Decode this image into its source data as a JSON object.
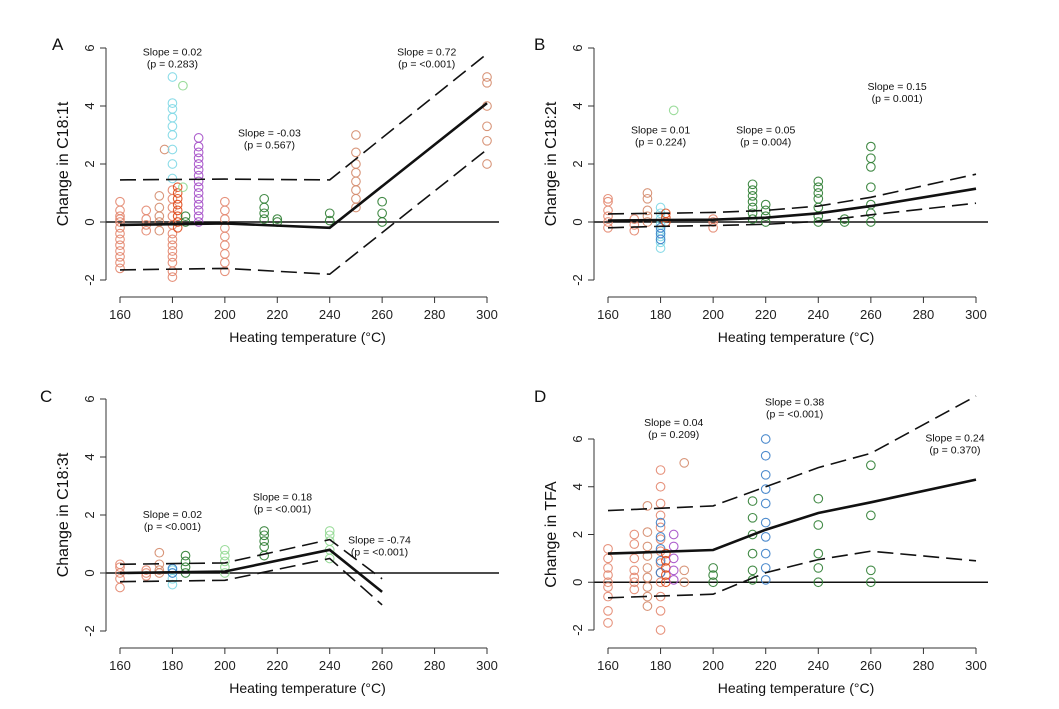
{
  "chart_data": [
    {
      "type": "scatter",
      "panel_label": "A",
      "xlabel": "Heating temperature (°C)",
      "ylabel": "Change in C18:1t",
      "xlim": [
        160,
        300
      ],
      "ylim": [
        -2,
        6
      ],
      "xticks": [
        160,
        180,
        200,
        220,
        240,
        260,
        280,
        300
      ],
      "yticks": [
        -2,
        0,
        2,
        4,
        6
      ],
      "fit": {
        "x": [
          160,
          200,
          240,
          300
        ],
        "y": [
          -0.1,
          -0.05,
          -0.2,
          4.1
        ]
      },
      "ci_upper": {
        "x": [
          160,
          200,
          240,
          300
        ],
        "y": [
          1.45,
          1.48,
          1.45,
          5.8
        ]
      },
      "ci_lower": {
        "x": [
          160,
          200,
          240,
          300
        ],
        "y": [
          -1.65,
          -1.6,
          -1.8,
          2.5
        ]
      },
      "annotations": [
        {
          "slope": "Slope = 0.02",
          "p": "(p = 0.283)",
          "x": 180,
          "y": 5.75
        },
        {
          "slope": "Slope = -0.03",
          "p": "(p = 0.567)",
          "x": 217,
          "y": 2.95
        },
        {
          "slope": "Slope = 0.72",
          "p": "(p = <0.001)",
          "x": 277,
          "y": 5.75
        }
      ],
      "clusters": [
        {
          "x": 160,
          "ys": [
            -1.6,
            -1.4,
            -1.2,
            -1.0,
            -0.8,
            -0.6,
            -0.4,
            -0.2,
            0,
            0.1,
            0.2,
            0.4,
            0.7
          ],
          "color": "#e3866e"
        },
        {
          "x": 170,
          "ys": [
            -0.3,
            -0.1,
            0.1,
            0.4
          ],
          "color": "#e3866e"
        },
        {
          "x": 175,
          "ys": [
            -0.3,
            0,
            0.2,
            0.5,
            0.9
          ],
          "color": "#d48a6a"
        },
        {
          "x": 177,
          "ys": [
            2.5
          ],
          "color": "#d48a6a"
        },
        {
          "x": 180,
          "ys": [
            -1.9,
            -1.7,
            -1.4,
            -1.2,
            -1.0,
            -0.8,
            -0.6,
            -0.4,
            -0.1,
            0.2,
            0.5,
            0.8,
            1.1
          ],
          "color": "#e3866e"
        },
        {
          "x": 180,
          "ys": [
            1.5,
            2.0,
            2.5,
            3.0,
            3.3,
            3.6,
            3.9,
            4.1,
            5.0
          ],
          "color": "#7fd8e6"
        },
        {
          "x": 182,
          "ys": [
            -0.2,
            0,
            0.2,
            0.4,
            0.6,
            0.8,
            1.0,
            1.2
          ],
          "color": "#e04a1a"
        },
        {
          "x": 184,
          "ys": [
            4.7,
            1.2
          ],
          "color": "#90d890"
        },
        {
          "x": 185,
          "ys": [
            0,
            0.2
          ],
          "color": "#2e7d32"
        },
        {
          "x": 190,
          "ys": [
            0,
            0.2,
            0.4,
            0.6,
            0.8,
            1.0,
            1.2,
            1.4,
            1.6,
            1.8,
            2.0,
            2.2,
            2.4,
            2.6,
            2.9
          ],
          "color": "#a44ec8"
        },
        {
          "x": 200,
          "ys": [
            -1.7,
            -1.4,
            -1.1,
            -0.8,
            -0.5,
            -0.2,
            0.1,
            0.4,
            0.7
          ],
          "color": "#e3866e"
        },
        {
          "x": 215,
          "ys": [
            0.1,
            0.3,
            0.5,
            0.8
          ],
          "color": "#2e7d32"
        },
        {
          "x": 220,
          "ys": [
            0,
            0.1
          ],
          "color": "#2e7d32"
        },
        {
          "x": 240,
          "ys": [
            0.05,
            0.3
          ],
          "color": "#2e7d32"
        },
        {
          "x": 250,
          "ys": [
            0.5,
            0.8,
            1.1,
            1.4,
            1.7,
            2.0,
            2.4,
            3.0
          ],
          "color": "#d48a6a"
        },
        {
          "x": 260,
          "ys": [
            0,
            0.3,
            0.7
          ],
          "color": "#2e7d32"
        },
        {
          "x": 300,
          "ys": [
            2.0,
            2.8,
            3.3,
            4.0,
            4.8,
            5.0
          ],
          "color": "#d48a6a"
        }
      ]
    },
    {
      "type": "scatter",
      "panel_label": "B",
      "xlabel": "Heating temperature (°C)",
      "ylabel": "Change in C18:2t",
      "xlim": [
        160,
        300
      ],
      "ylim": [
        -2,
        6
      ],
      "xticks": [
        160,
        180,
        200,
        220,
        240,
        260,
        280,
        300
      ],
      "yticks": [
        -2,
        0,
        2,
        4,
        6
      ],
      "fit": {
        "x": [
          160,
          180,
          200,
          220,
          240,
          260,
          300
        ],
        "y": [
          0.05,
          0.07,
          0.08,
          0.15,
          0.3,
          0.55,
          1.15
        ]
      },
      "ci_upper": {
        "x": [
          160,
          180,
          200,
          220,
          240,
          260,
          300
        ],
        "y": [
          0.28,
          0.3,
          0.33,
          0.4,
          0.55,
          0.85,
          1.65
        ]
      },
      "ci_lower": {
        "x": [
          160,
          180,
          200,
          220,
          240,
          260,
          300
        ],
        "y": [
          -0.2,
          -0.15,
          -0.12,
          -0.08,
          0.02,
          0.25,
          0.65
        ]
      },
      "annotations": [
        {
          "slope": "Slope = 0.01",
          "p": "(p = 0.224)",
          "x": 180,
          "y": 3.05
        },
        {
          "slope": "Slope = 0.05",
          "p": "(p = 0.004)",
          "x": 220,
          "y": 3.05
        },
        {
          "slope": "Slope = 0.15",
          "p": "(p = 0.001)",
          "x": 270,
          "y": 4.55
        }
      ],
      "clusters": [
        {
          "x": 160,
          "ys": [
            -0.2,
            0,
            0.2,
            0.4,
            0.7,
            0.8
          ],
          "color": "#e3866e"
        },
        {
          "x": 170,
          "ys": [
            -0.3,
            -0.1,
            0.1
          ],
          "color": "#e3866e"
        },
        {
          "x": 175,
          "ys": [
            0,
            0.2,
            0.4,
            0.8,
            1.0
          ],
          "color": "#d48a6a"
        },
        {
          "x": 180,
          "ys": [
            -0.9,
            -0.7,
            -0.5,
            -0.3,
            -0.1,
            0.1,
            0.3,
            0.5
          ],
          "color": "#7fd8e6"
        },
        {
          "x": 180,
          "ys": [
            -0.6,
            -0.4,
            -0.2
          ],
          "color": "#3a7ec8"
        },
        {
          "x": 182,
          "ys": [
            0,
            0.15,
            0.3
          ],
          "color": "#e04a1a"
        },
        {
          "x": 185,
          "ys": [
            3.85
          ],
          "color": "#90d890"
        },
        {
          "x": 200,
          "ys": [
            -0.2,
            0,
            0.1
          ],
          "color": "#e3866e"
        },
        {
          "x": 215,
          "ys": [
            0.1,
            0.3,
            0.5,
            0.7,
            0.9,
            1.1,
            1.3
          ],
          "color": "#2e7d32"
        },
        {
          "x": 220,
          "ys": [
            0,
            0.2,
            0.4,
            0.6
          ],
          "color": "#2e7d32"
        },
        {
          "x": 240,
          "ys": [
            0,
            0.2,
            0.5,
            0.8,
            1.0,
            1.2,
            1.4
          ],
          "color": "#2e7d32"
        },
        {
          "x": 250,
          "ys": [
            0,
            0.1
          ],
          "color": "#2e7d32"
        },
        {
          "x": 260,
          "ys": [
            0,
            0.3,
            0.6,
            1.2,
            1.9,
            2.2,
            2.6
          ],
          "color": "#2e7d32"
        }
      ]
    },
    {
      "type": "scatter",
      "panel_label": "C",
      "xlabel": "Heating temperature (°C)",
      "ylabel": "Change in C18:3t",
      "xlim": [
        160,
        300
      ],
      "ylim": [
        -2,
        6
      ],
      "xticks": [
        160,
        180,
        200,
        220,
        240,
        260,
        280,
        300
      ],
      "yticks": [
        -2,
        0,
        2,
        4,
        6
      ],
      "fit": {
        "x": [
          160,
          200,
          240,
          260
        ],
        "y": [
          0,
          0.05,
          0.8,
          -0.65
        ]
      },
      "ci_upper": {
        "x": [
          160,
          200,
          240,
          260
        ],
        "y": [
          0.3,
          0.35,
          1.15,
          -0.2
        ]
      },
      "ci_lower": {
        "x": [
          160,
          200,
          240,
          260
        ],
        "y": [
          -0.3,
          -0.25,
          0.5,
          -1.1
        ]
      },
      "annotations": [
        {
          "slope": "Slope = 0.02",
          "p": "(p = <0.001)",
          "x": 180,
          "y": 1.9
        },
        {
          "slope": "Slope = 0.18",
          "p": "(p = <0.001)",
          "x": 222,
          "y": 2.5
        },
        {
          "slope": "Slope = -0.74",
          "p": "(p = <0.001)",
          "x": 259,
          "y": 1.02
        }
      ],
      "clusters": [
        {
          "x": 160,
          "ys": [
            -0.5,
            -0.2,
            0,
            0.2,
            0.3
          ],
          "color": "#e3866e"
        },
        {
          "x": 170,
          "ys": [
            -0.1,
            0,
            0.1
          ],
          "color": "#e3866e"
        },
        {
          "x": 175,
          "ys": [
            0,
            0.1,
            0.3,
            0.7
          ],
          "color": "#d48a6a"
        },
        {
          "x": 180,
          "ys": [
            -0.4,
            -0.2,
            0,
            0.1
          ],
          "color": "#7fd8e6"
        },
        {
          "x": 180,
          "ys": [
            0,
            0.15
          ],
          "color": "#3a7ec8"
        },
        {
          "x": 185,
          "ys": [
            0,
            0.2,
            0.4,
            0.6
          ],
          "color": "#2e7d32"
        },
        {
          "x": 200,
          "ys": [
            0,
            0.2,
            0.4,
            0.6,
            0.8
          ],
          "color": "#90d890"
        },
        {
          "x": 215,
          "ys": [
            0.6,
            0.9,
            1.1,
            1.3,
            1.45
          ],
          "color": "#2e7d32"
        },
        {
          "x": 240,
          "ys": [
            0.5,
            0.8,
            1.1,
            1.3,
            1.45
          ],
          "color": "#90d890"
        }
      ]
    },
    {
      "type": "scatter",
      "panel_label": "D",
      "xlabel": "Heating temperature (°C)",
      "ylabel": "Change in TFA",
      "xlim": [
        160,
        300
      ],
      "ylim": [
        -2,
        8
      ],
      "xticks": [
        160,
        180,
        200,
        220,
        240,
        260,
        280,
        300
      ],
      "yticks": [
        -2,
        0,
        2,
        4,
        6
      ],
      "fit": {
        "x": [
          160,
          200,
          220,
          240,
          260,
          300
        ],
        "y": [
          1.2,
          1.35,
          2.2,
          2.9,
          3.35,
          4.3
        ]
      },
      "ci_upper": {
        "x": [
          160,
          200,
          220,
          240,
          260,
          300
        ],
        "y": [
          3.0,
          3.2,
          4.0,
          4.8,
          5.4,
          7.8
        ]
      },
      "ci_lower": {
        "x": [
          160,
          200,
          220,
          240,
          260,
          300
        ],
        "y": [
          -0.65,
          -0.5,
          0.4,
          0.95,
          1.3,
          0.9
        ]
      },
      "annotations": [
        {
          "slope": "Slope = 0.04",
          "p": "(p = 0.209)",
          "x": 185,
          "y": 6.55
        },
        {
          "slope": "Slope = 0.38",
          "p": "(p = <0.001)",
          "x": 231,
          "y": 7.4
        },
        {
          "slope": "Slope = 0.24",
          "p": "(p = 0.370)",
          "x": 292,
          "y": 5.9
        }
      ],
      "clusters": [
        {
          "x": 160,
          "ys": [
            -1.7,
            -1.2,
            -0.6,
            -0.2,
            0,
            0.3,
            0.6,
            1.0,
            1.4
          ],
          "color": "#e3866e"
        },
        {
          "x": 170,
          "ys": [
            -0.3,
            0,
            0.2,
            0.5,
            1.0,
            1.6,
            2.0
          ],
          "color": "#e3866e"
        },
        {
          "x": 175,
          "ys": [
            -1.0,
            -0.6,
            -0.2,
            0.2,
            0.6,
            1.1,
            1.5,
            2.1,
            3.2
          ],
          "color": "#d48a6a"
        },
        {
          "x": 180,
          "ys": [
            -2.0,
            -1.2,
            -0.6,
            0,
            0.4,
            0.8,
            1.3,
            1.8,
            2.3,
            2.8,
            3.3,
            4.0,
            4.7
          ],
          "color": "#e3866e"
        },
        {
          "x": 180,
          "ys": [
            0.4,
            0.9,
            1.4,
            1.9,
            2.5
          ],
          "color": "#3a7ec8"
        },
        {
          "x": 182,
          "ys": [
            0,
            0.3,
            0.6,
            0.9,
            1.2
          ],
          "color": "#e04a1a"
        },
        {
          "x": 185,
          "ys": [
            0.1,
            0.5,
            1.0,
            1.5,
            2.0
          ],
          "color": "#a44ec8"
        },
        {
          "x": 189,
          "ys": [
            0,
            0.5,
            5.0
          ],
          "color": "#d48a6a"
        },
        {
          "x": 200,
          "ys": [
            0,
            0.3,
            0.6
          ],
          "color": "#2e7d32"
        },
        {
          "x": 215,
          "ys": [
            0.1,
            0.5,
            1.2,
            2.0,
            2.7,
            3.4
          ],
          "color": "#2e7d32"
        },
        {
          "x": 220,
          "ys": [
            0.1,
            0.6,
            1.2,
            1.9,
            2.5,
            3.3,
            3.9,
            4.5,
            5.3,
            6.0
          ],
          "color": "#3a7ec8"
        },
        {
          "x": 240,
          "ys": [
            0,
            0.6,
            1.2,
            2.4,
            3.5
          ],
          "color": "#2e7d32"
        },
        {
          "x": 260,
          "ys": [
            0,
            0.5,
            2.8,
            4.9
          ],
          "color": "#2e7d32"
        }
      ]
    }
  ]
}
